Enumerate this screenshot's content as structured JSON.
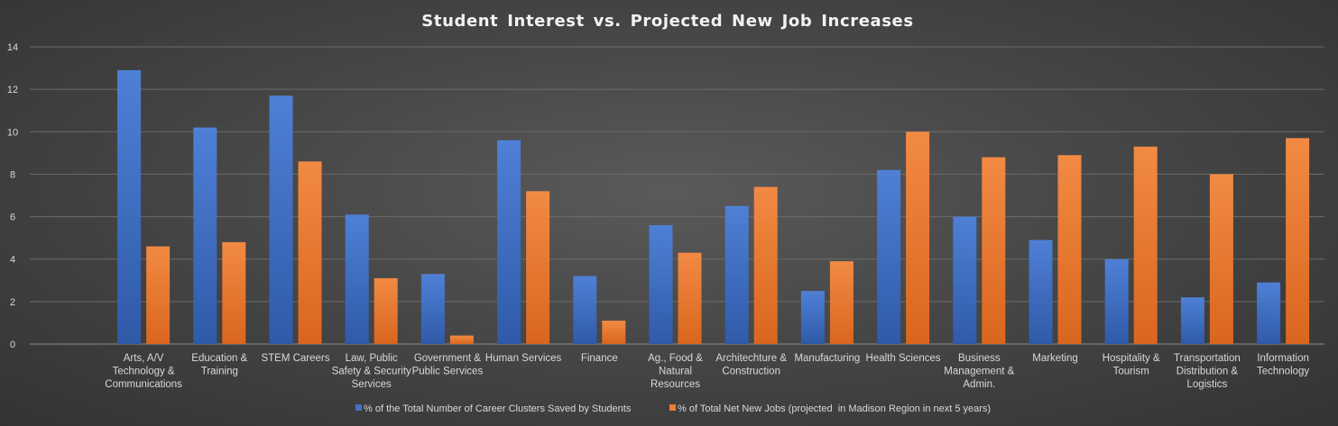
{
  "chart_data": {
    "type": "bar",
    "title": "Student Interest vs. Projected New Job Increases",
    "xlabel": "",
    "ylabel": "",
    "ylim": [
      0,
      14
    ],
    "yticks": [
      0,
      2,
      4,
      6,
      8,
      10,
      12,
      14
    ],
    "grid": true,
    "legend_position": "bottom",
    "categories": [
      "Arts, A/V Technology & Communications",
      "Education & Training",
      "STEM Careers",
      "Law, Public Safety & Security Services",
      "Government & Public Services",
      "Human Services",
      "Finance",
      "Ag., Food & Natural Resources",
      "Architechture & Construction",
      "Manufacturing",
      "Health Sciences",
      "Business Management & Admin.",
      "Marketing",
      "Hospitality & Tourism",
      "Transportation Distribution & Logistics",
      "Information Technology"
    ],
    "category_lines": [
      [
        "Arts, A/V",
        "Technology &",
        "Communications"
      ],
      [
        "Education &",
        "Training"
      ],
      [
        "STEM Careers"
      ],
      [
        "Law, Public",
        "Safety & Security",
        "Services"
      ],
      [
        "Government &",
        "Public Services"
      ],
      [
        "Human Services"
      ],
      [
        "Finance"
      ],
      [
        "Ag., Food &",
        "Natural",
        "Resources"
      ],
      [
        "Architechture &",
        "Construction"
      ],
      [
        "Manufacturing"
      ],
      [
        "Health Sciences"
      ],
      [
        "Business",
        "Management &",
        "Admin."
      ],
      [
        "Marketing"
      ],
      [
        "Hospitality &",
        "Tourism"
      ],
      [
        "Transportation",
        "Distribution &",
        "Logistics"
      ],
      [
        "Information",
        "Technology"
      ]
    ],
    "series": [
      {
        "name": "% of the Total Number of Career Clusters Saved by Students",
        "color": "#4472C4",
        "values": [
          12.9,
          10.2,
          11.7,
          6.1,
          3.3,
          9.6,
          3.2,
          5.6,
          6.5,
          2.5,
          8.2,
          6.0,
          4.9,
          4.0,
          2.2,
          2.9
        ]
      },
      {
        "name": "% of Total Net New Jobs (projected  in Madison Region in next 5 years)",
        "color": "#ED7D31",
        "values": [
          4.6,
          4.8,
          8.6,
          3.1,
          0.4,
          7.2,
          1.1,
          4.3,
          7.4,
          3.9,
          10.0,
          8.8,
          8.9,
          9.3,
          8.0,
          9.7
        ]
      }
    ]
  }
}
